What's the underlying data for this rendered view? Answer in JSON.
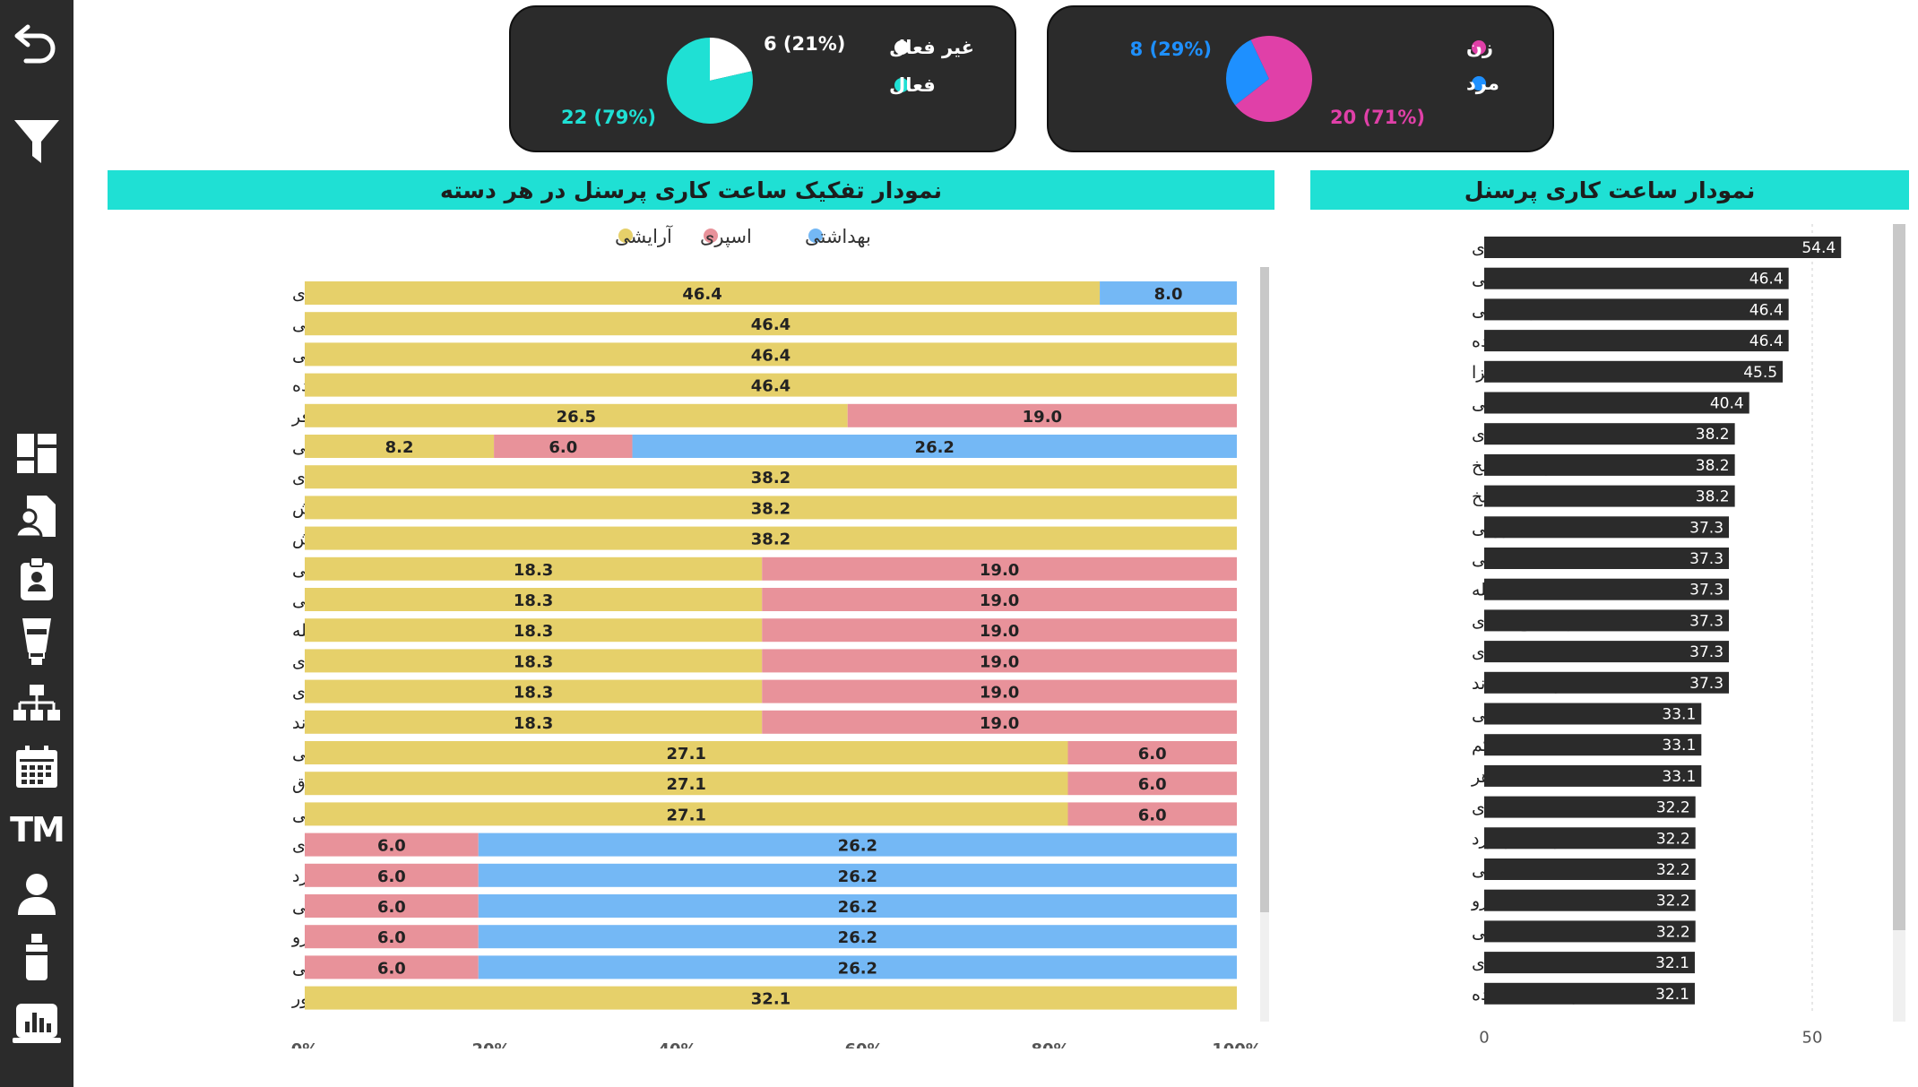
{
  "sidebar": {
    "items": [
      {
        "name": "back-icon"
      },
      {
        "name": "filter-icon"
      },
      {
        "name": "dashboard-icon"
      },
      {
        "name": "personnel-file-icon"
      },
      {
        "name": "employee-badge-icon"
      },
      {
        "name": "cream-tube-icon"
      },
      {
        "name": "org-chart-icon"
      },
      {
        "name": "calendar-icon"
      },
      {
        "name": "tm-icon"
      },
      {
        "name": "user-icon"
      },
      {
        "name": "spray-bottle-icon"
      },
      {
        "name": "report-chart-icon"
      }
    ],
    "tm_label": "TM"
  },
  "kpi_status": {
    "legend": [
      {
        "label": "غیر فعال",
        "color": "#ffffff"
      },
      {
        "label": "فعال",
        "color": "#1fe0d4"
      }
    ],
    "slices": [
      {
        "label": "غیر فعال",
        "value": 6,
        "percent": "21%",
        "text": "6 (21%)",
        "color": "#ffffff",
        "label_color": "#ffffff"
      },
      {
        "label": "فعال",
        "value": 22,
        "percent": "79%",
        "text": "22 (79%)",
        "color": "#1fe0d4",
        "label_color": "#1fe0d4"
      }
    ]
  },
  "kpi_gender": {
    "legend": [
      {
        "label": "زن",
        "color": "#e040a8"
      },
      {
        "label": "مرد",
        "color": "#1e90ff"
      }
    ],
    "slices": [
      {
        "label": "مرد",
        "value": 8,
        "percent": "29%",
        "text": "8 (29%)",
        "color": "#1e90ff",
        "label_color": "#1e90ff"
      },
      {
        "label": "زن",
        "value": 20,
        "percent": "71%",
        "text": "20 (71%)",
        "color": "#e040a8",
        "label_color": "#e040a8"
      }
    ]
  },
  "stack_chart": {
    "title": "نمودار تفکیک ساعت کاری پرسنل در هر دسته",
    "legend": [
      {
        "label": "آرایشی",
        "color": "#e6d06a"
      },
      {
        "label": "اسپری",
        "color": "#e8929a"
      },
      {
        "label": "بهداشتی",
        "color": "#74b8f5"
      }
    ],
    "x_ticks": [
      "0%",
      "20%",
      "40%",
      "60%",
      "80%",
      "100%"
    ]
  },
  "hours_chart": {
    "title": "نمودار ساعت کاری پرسنل",
    "x_ticks": [
      "0",
      "50"
    ]
  },
  "chart_data": [
    {
      "type": "bar",
      "orientation": "horizontal",
      "stacked": "percent",
      "title": "نمودار تفکیک ساعت کاری پرسنل در هر دسته",
      "xlim": [
        0,
        100
      ],
      "categories": [
        "مینا مرادی",
        "عظمت صولتی",
        "مریم رجبی",
        "مینا آصفی زاده",
        "عبدالمحمد بهزادیان فر",
        "غزل عرب شاهی",
        "افسانه منصوری",
        "اکرم همای بخشایش",
        "کوثر همای بخشایش",
        "احمد شیروانی",
        "امیر رضایی",
        "علی عبدالله",
        "علیرضا حاج مهدی",
        "نیلوفر مرادی",
        "وحید حاجیوند",
        "شهناز وکیلی",
        "طیبه نوری کم درق",
        "فاطمه مظاهری خورزنی",
        "زهرا برقراری",
        "زهره صحرانورد",
        "سمیه عجملونی",
        "صغری جوشرو",
        "طیبه فتحی",
        "سید زهرا ادریس پور"
      ],
      "series": [
        {
          "name": "آرایشی",
          "color": "#e6d06a",
          "values": [
            46.4,
            46.4,
            46.4,
            46.4,
            26.5,
            8.2,
            38.2,
            38.2,
            38.2,
            18.3,
            18.3,
            18.3,
            18.3,
            18.3,
            18.3,
            27.1,
            27.1,
            27.1,
            0,
            0,
            0,
            0,
            0,
            32.1
          ]
        },
        {
          "name": "اسپری",
          "color": "#e8929a",
          "values": [
            0,
            0,
            0,
            0,
            19.0,
            6.0,
            0,
            0,
            0,
            19.0,
            19.0,
            19.0,
            19.0,
            19.0,
            19.0,
            6.0,
            6.0,
            6.0,
            6.0,
            6.0,
            6.0,
            6.0,
            6.0,
            0
          ]
        },
        {
          "name": "بهداشتی",
          "color": "#74b8f5",
          "values": [
            8.0,
            0,
            0,
            0,
            0,
            26.2,
            0,
            0,
            0,
            0,
            0,
            0,
            0,
            0,
            0,
            0,
            0,
            0,
            26.2,
            26.2,
            26.2,
            26.2,
            26.2,
            0
          ]
        }
      ]
    },
    {
      "type": "bar",
      "orientation": "horizontal",
      "title": "نمودار ساعت کاری پرسنل",
      "xlim": [
        0,
        60
      ],
      "categories": [
        "مینا مرادی",
        "عظمت صولتی",
        "مریم رجبی",
        "مینا آصفی زاده",
        "...عبدالمحمد بهزا",
        "غزل عرب شاهی",
        "افسانه منصوری",
        "...اکرم همای بخ",
        "...کوثر همای بخ",
        "احمد شیروانی",
        "امیر رضایی",
        "علی عبدالله",
        "علیرضا حاج مهدی",
        "نیلوفر مرادی",
        "وحید حاجیوند",
        "شهناز وکیلی",
        "... طیبه نوری کم",
        "...فاطمه مظاهر",
        "زهرا برقراری",
        "زهره صحرانورد",
        "سمیه عجملونی",
        "صغری جوشرو",
        "طیبه فتحی",
        "...سید زهرا ادری",
        "مرجان غیبی زاده"
      ],
      "values": [
        54.4,
        46.4,
        46.4,
        46.4,
        45.5,
        40.4,
        38.2,
        38.2,
        38.2,
        37.3,
        37.3,
        37.3,
        37.3,
        37.3,
        37.3,
        33.1,
        33.1,
        33.1,
        32.2,
        32.2,
        32.2,
        32.2,
        32.2,
        32.1,
        32.1
      ],
      "bar_color": "#2b2b2b"
    }
  ]
}
